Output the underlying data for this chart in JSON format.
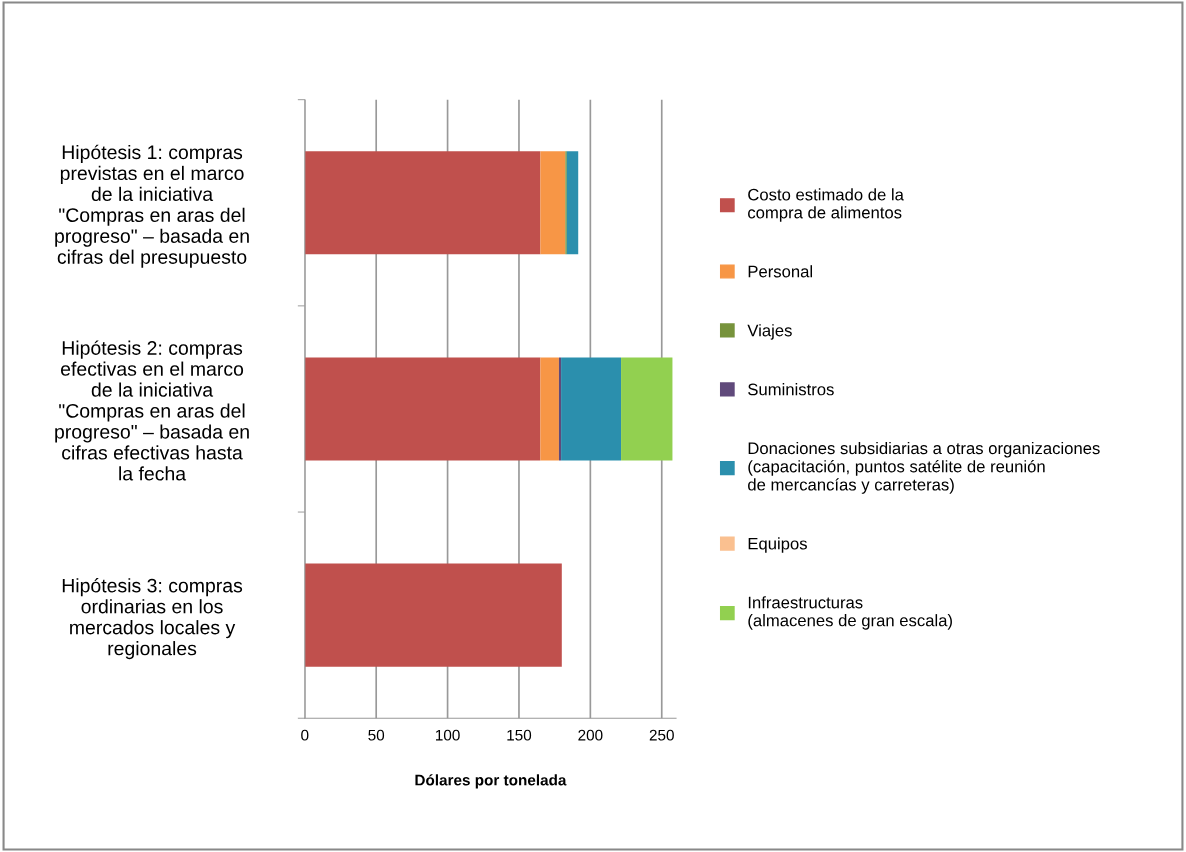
{
  "chart_data": {
    "type": "bar",
    "orientation": "horizontal",
    "stacked": true,
    "categories": [
      "Hipótesis 1: compras previstas en el marco de la iniciativa \"Compras en aras del progreso\" – basada en cifras del presupuesto",
      "Hipótesis 2: compras efectivas en el marco de la iniciativa \"Compras en aras del progreso\" – basada en cifras efectivas hasta la fecha",
      "Hipótesis 3: compras ordinarias en los mercados locales y regionales"
    ],
    "series": [
      {
        "name": "Costo estimado de la\ncompra de alimentos",
        "color": "#c0504d",
        "values": [
          165,
          165,
          180
        ]
      },
      {
        "name": "Personal",
        "color": "#f79646",
        "values": [
          17.5,
          13,
          0
        ]
      },
      {
        "name": "Viajes",
        "color": "#77933c",
        "values": [
          1,
          0,
          0
        ]
      },
      {
        "name": "Suministros",
        "color": "#604a7b",
        "values": [
          0,
          1.5,
          0
        ]
      },
      {
        "name": "Donaciones subsidiarias a otras organizaciones\n(capacitación, puntos satélite de reunión\nde mercancías y carreteras)",
        "color": "#2b8fad",
        "values": [
          8,
          42,
          0
        ]
      },
      {
        "name": "Equipos",
        "color": "#fac090",
        "values": [
          0,
          0,
          0
        ]
      },
      {
        "name": "Infraestructuras\n(almacenes de gran escala)",
        "color": "#92d050",
        "values": [
          0,
          36,
          0
        ]
      }
    ],
    "xlabel": "Dólares por tonelada",
    "xlim": [
      0,
      260
    ],
    "xticks": [
      0,
      50,
      100,
      150,
      200,
      250
    ],
    "grid": "x",
    "legend": "right"
  }
}
